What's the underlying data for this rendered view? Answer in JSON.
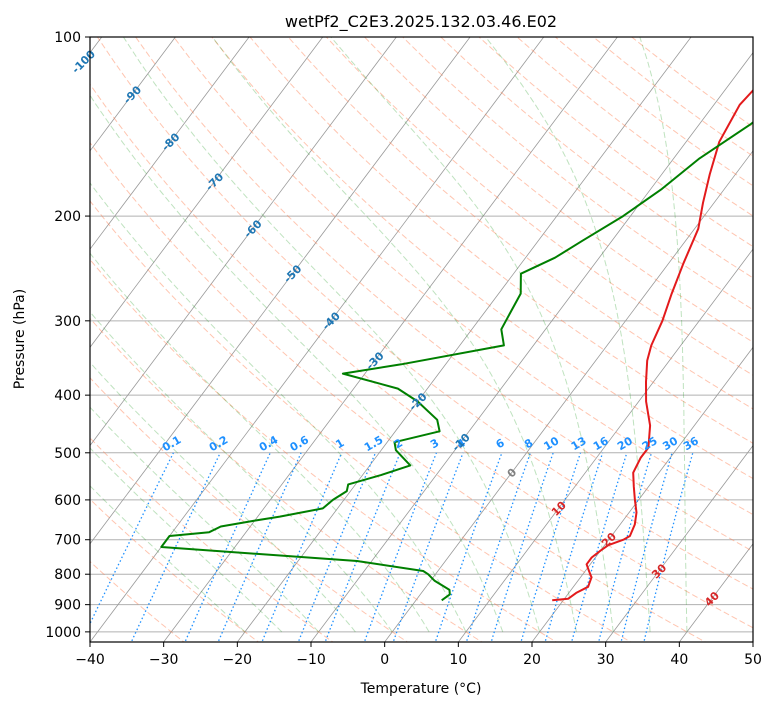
{
  "chart_data": {
    "type": "line",
    "title": "wetPf2_C2E3.2025.132.03.46.E02",
    "xlabel": "Temperature (°C)",
    "ylabel": "Pressure (hPa)",
    "xlim": [
      -40,
      50
    ],
    "ylim": [
      1040,
      100
    ],
    "y_scale": "log",
    "x_ticks": [
      -40,
      -30,
      -20,
      -10,
      0,
      10,
      20,
      30,
      40,
      50
    ],
    "y_ticks": [
      100,
      200,
      300,
      400,
      500,
      600,
      700,
      800,
      900,
      1000
    ],
    "grid": true,
    "series": [
      {
        "role": "temperature",
        "color": "#e31a1c",
        "points": [
          [
            18.5,
            885
          ],
          [
            20.5,
            880
          ],
          [
            21.0,
            860
          ],
          [
            22.0,
            840
          ],
          [
            21.5,
            810
          ],
          [
            20.5,
            790
          ],
          [
            19.5,
            770
          ],
          [
            19.5,
            750
          ],
          [
            20.0,
            730
          ],
          [
            20.5,
            715
          ],
          [
            22.0,
            700
          ],
          [
            22.5,
            690
          ],
          [
            22.0,
            660
          ],
          [
            21.0,
            630
          ],
          [
            19.5,
            600
          ],
          [
            18.0,
            570
          ],
          [
            16.5,
            540
          ],
          [
            16.0,
            510
          ],
          [
            16.0,
            490
          ],
          [
            14.0,
            450
          ],
          [
            11.0,
            410
          ],
          [
            9.0,
            380
          ],
          [
            7.0,
            350
          ],
          [
            6.0,
            330
          ],
          [
            5.0,
            300
          ],
          [
            3.5,
            270
          ],
          [
            2.0,
            240
          ],
          [
            0.5,
            210
          ],
          [
            -1.5,
            190
          ],
          [
            -3.5,
            170
          ],
          [
            -5.5,
            150
          ],
          [
            -6.5,
            130
          ],
          [
            -6.0,
            120
          ],
          [
            -5.0,
            115
          ],
          [
            -3.5,
            110
          ],
          [
            -1.0,
            105
          ],
          [
            0.0,
            100
          ]
        ]
      },
      {
        "role": "dewpoint",
        "color": "#007f00",
        "points": [
          [
            3.5,
            885
          ],
          [
            4.0,
            865
          ],
          [
            3.5,
            850
          ],
          [
            0.5,
            820
          ],
          [
            -1.0,
            800
          ],
          [
            -2.0,
            790
          ],
          [
            -12.0,
            760
          ],
          [
            -40.0,
            720
          ],
          [
            -40.0,
            690
          ],
          [
            -35.0,
            680
          ],
          [
            -34.0,
            665
          ],
          [
            -30.0,
            650
          ],
          [
            -27.0,
            640
          ],
          [
            -22.0,
            620
          ],
          [
            -21.5,
            600
          ],
          [
            -20.5,
            580
          ],
          [
            -21.0,
            565
          ],
          [
            -17.5,
            545
          ],
          [
            -14.5,
            525
          ],
          [
            -18.0,
            495
          ],
          [
            -19.0,
            480
          ],
          [
            -14.0,
            460
          ],
          [
            -15.5,
            440
          ],
          [
            -20.0,
            410
          ],
          [
            -24.0,
            390
          ],
          [
            -33.0,
            368
          ],
          [
            -26.0,
            355
          ],
          [
            -14.0,
            330
          ],
          [
            -16.0,
            310
          ],
          [
            -16.5,
            290
          ],
          [
            -17.0,
            270
          ],
          [
            -19.0,
            250
          ],
          [
            -16.0,
            235
          ],
          [
            -14.0,
            220
          ],
          [
            -11.0,
            200
          ],
          [
            -8.5,
            180
          ],
          [
            -6.5,
            160
          ],
          [
            -3.0,
            140
          ],
          [
            -1.0,
            125
          ],
          [
            0.5,
            115
          ],
          [
            1.5,
            105
          ],
          [
            2.0,
            100
          ]
        ]
      }
    ],
    "isotherm_labels": [
      "-100",
      "-90",
      "-80",
      "-70",
      "-60",
      "-50",
      "-40",
      "-30",
      "-20",
      "-10",
      "0",
      "10",
      "20",
      "30",
      "40"
    ],
    "mixing_ratio_labels": [
      "0.1",
      "0.2",
      "0.4",
      "0.6",
      "1",
      "1.5",
      "2",
      "3",
      "4",
      "6",
      "8",
      "10",
      "13",
      "16",
      "20",
      "25",
      "30",
      "36"
    ],
    "mixing_ratio_values": [
      0.1,
      0.2,
      0.4,
      0.6,
      1,
      1.5,
      2,
      3,
      4,
      6,
      8,
      10,
      13,
      16,
      20,
      25,
      30,
      36
    ],
    "colors": {
      "isotherm": "#999999",
      "dry_adiabat": "#ff7f50",
      "moist_adiabat": "#2ca02c",
      "mixing_ratio": "#1e90ff",
      "isotherm_label_cold": "#1f77b4",
      "isotherm_label_zero": "#808080",
      "isotherm_label_warm": "#d62728"
    }
  }
}
